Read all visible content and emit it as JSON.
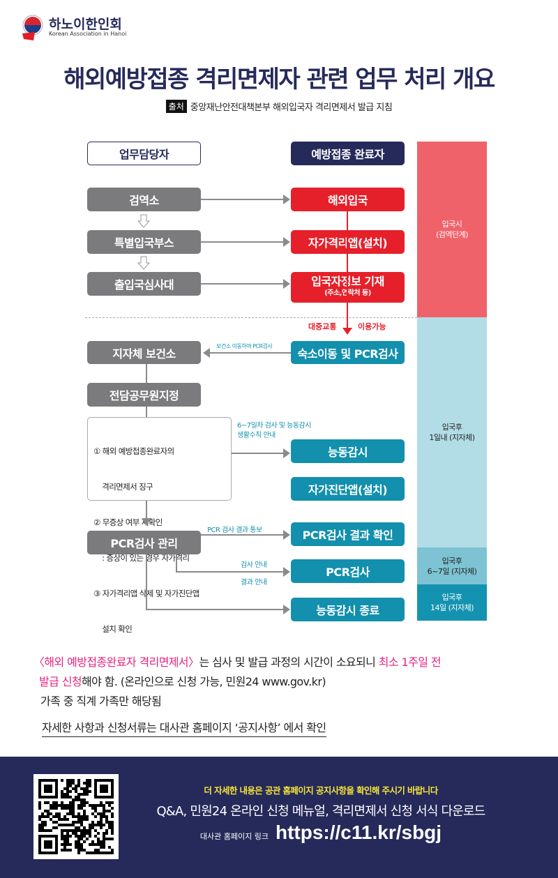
{
  "header": {
    "org_name": "하노이한인회",
    "org_sub": "Korean Association in Hanoi",
    "title": "해외예방접종 격리면제자 관련 업무 처리 개요",
    "source_badge": "출처",
    "source_text": "중앙재난안전대책본부 해외입국자 격리면제서 발급 지침"
  },
  "columns": {
    "left": "업무담당자",
    "right": "예방접종 완료자"
  },
  "left_boxes": [
    "검역소",
    "특별입국부스",
    "출입국심사대",
    "지자체 보건소",
    "전담공무원지정",
    "PCR검사 관리"
  ],
  "right_boxes": [
    "해외입국",
    "자가격리앱(설치)",
    "입국자정보 기재",
    "숙소이동 및 PCR검사",
    "능동감시",
    "자가진단앱(설치)",
    "PCR검사 결과 확인",
    "PCR검사",
    "능동감시 종료"
  ],
  "info_sub": "(주소,연락처 등)",
  "transit": {
    "left": "대중교통",
    "right": "이용가능"
  },
  "labels": {
    "health_center": "보건소 이동하여 PCR검사",
    "day67": "6~7일차 검사 및 능동감시\n생활수칙 안내",
    "pcr_result": "PCR 검사 결과 통보",
    "test_guide": "검사 안내",
    "result_guide": "결과 안내"
  },
  "tasks": [
    "① 해외 예방접종완료자의",
    "    격리면제서 징구",
    "② 무증상 여부 재확인",
    "    : 증상이 있는 경우 자가격리",
    "③ 자가격리앱 삭제 및 자가진단앱",
    "    설치 확인"
  ],
  "stages": [
    "입국시\n(검역단계)",
    "입국후\n1일내 (지자체)",
    "입국후\n6~7일 (지자체)",
    "입국후\n14일 (지자체)"
  ],
  "stage_colors": [
    "#f0626a",
    "#b2dde6",
    "#7dc3d3",
    "#1493b0"
  ],
  "notes": {
    "l1a": "〈해외 예방접종완료자 격리면제서〉",
    "l1b": "는 심사 및 발급 과정의 시간이 소요되니 ",
    "l1c": "최소 1주일 전",
    "l2a": "발급 신청",
    "l2b": "해야 함. (온라인으로 신청 가능, 민원24 www.gov.kr)",
    "l3": "가족 중 직계 가족만 해당됨",
    "l4": "자세한 사항과 신청서류는 대사관 홈페이지 ‘공지사항’ 에서 확인"
  },
  "footer": {
    "yellow": "더 자세한 내용은 공관 홈페이지 공지사항을 확인해 주시기 바랍니다",
    "white": "Q&A, 민원24 온라인 신청 메뉴얼, 격리면제서 신청 서식 다운로드",
    "link_label": "대사관 홈페이지 링크",
    "link": "https://c11.kr/sbgj"
  },
  "colors": {
    "navy": "#262a5a",
    "gray": "#7b7b7d",
    "red": "#e6202a",
    "teal": "#1290ad",
    "pink": "#e6237f",
    "yellow": "#f5e33a"
  }
}
